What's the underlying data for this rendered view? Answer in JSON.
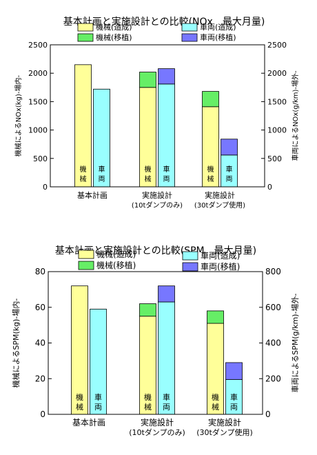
{
  "chart_data": [
    {
      "type": "bar",
      "title": "基本計画と実施設計との比較(NOx　最大月量)",
      "ylabel_left": "機械によるNOx(kg)-場内-",
      "ylabel_right": "車両によるNOx(g/km)-場外-",
      "ylim_left": [
        0,
        2500
      ],
      "ylim_right": [
        0,
        2500
      ],
      "yticks_left": [
        "0",
        "500",
        "1000",
        "1500",
        "2000",
        "2500"
      ],
      "yticks_right": [
        "0",
        "500",
        "1000",
        "1500",
        "2000",
        "2500"
      ],
      "groups": [
        {
          "label": [
            "基本計画"
          ],
          "machine": {
            "construction": 2150,
            "transplant": 0
          },
          "vehicle": {
            "construction": 1720,
            "transplant": 0
          }
        },
        {
          "label": [
            "実施設計",
            "(10tダンプのみ)"
          ],
          "machine": {
            "construction": 1750,
            "transplant": 270
          },
          "vehicle": {
            "construction": 1810,
            "transplant": 270
          }
        },
        {
          "label": [
            "実施設計",
            "(30tダンプ使用)"
          ],
          "machine": {
            "construction": 1410,
            "transplant": 270
          },
          "vehicle": {
            "construction": 560,
            "transplant": 280
          }
        }
      ],
      "bar_labels": {
        "machine": [
          "機",
          "械"
        ],
        "vehicle": [
          "車",
          "両"
        ]
      },
      "legend": [
        {
          "name": "機械(造成)",
          "color": "#ffff99"
        },
        {
          "name": "車両(造成)",
          "color": "#99ffff"
        },
        {
          "name": "機械(移植)",
          "color": "#66ee66"
        },
        {
          "name": "車両(移植)",
          "color": "#7777ff"
        }
      ]
    },
    {
      "type": "bar",
      "title": "基本計画と実施設計との比較(SPM　最大月量)",
      "ylabel_left": "機械によるSPM(kg)-場内-",
      "ylabel_right": "車両によるSPM(g/km)-場外-",
      "ylim_left": [
        0,
        80
      ],
      "ylim_right": [
        0,
        800
      ],
      "yticks_left": [
        "0",
        "20",
        "40",
        "60",
        "80"
      ],
      "yticks_right": [
        "0",
        "200",
        "400",
        "600",
        "800"
      ],
      "groups": [
        {
          "label": [
            "基本計画"
          ],
          "machine": {
            "construction": 72,
            "transplant": 0
          },
          "vehicle": {
            "construction": 590,
            "transplant": 0
          }
        },
        {
          "label": [
            "実施設計",
            "(10tダンプのみ)"
          ],
          "machine": {
            "construction": 55,
            "transplant": 7
          },
          "vehicle": {
            "construction": 630,
            "transplant": 90
          }
        },
        {
          "label": [
            "実施設計",
            "(30tダンプ使用)"
          ],
          "machine": {
            "construction": 51,
            "transplant": 7
          },
          "vehicle": {
            "construction": 195,
            "transplant": 95
          }
        }
      ],
      "bar_labels": {
        "machine": [
          "機",
          "械"
        ],
        "vehicle": [
          "車",
          "両"
        ]
      },
      "legend": [
        {
          "name": "機械(造成)",
          "color": "#ffff99"
        },
        {
          "name": "機械(移植)",
          "color": "#66ee66"
        },
        {
          "name": "車両(造成)",
          "color": "#99ffff"
        },
        {
          "name": "車両(移植)",
          "color": "#7777ff"
        }
      ]
    }
  ]
}
